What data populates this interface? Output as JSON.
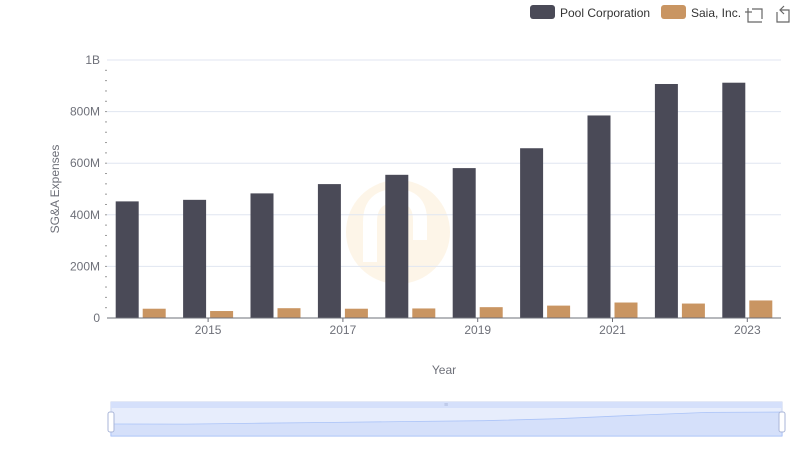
{
  "chart_data": {
    "type": "bar",
    "title": "",
    "xlabel": "Year",
    "ylabel": "SG&A Expenses",
    "x": [
      2014,
      2015,
      2016,
      2017,
      2018,
      2019,
      2020,
      2021,
      2022,
      2023
    ],
    "x_tick_labels": [
      "2015",
      "2017",
      "2019",
      "2021",
      "2023"
    ],
    "x_tick_values": [
      2015,
      2017,
      2019,
      2021,
      2023
    ],
    "ylim": [
      0,
      1000000000
    ],
    "y_tick_values": [
      0,
      200000000,
      400000000,
      600000000,
      800000000,
      1000000000
    ],
    "y_tick_labels": [
      "0",
      "200M",
      "400M",
      "600M",
      "800M",
      "1B"
    ],
    "grid": true,
    "legend_position": "top-right",
    "series": [
      {
        "name": "Pool Corporation",
        "color": "#4a4a57",
        "values": [
          452000000,
          458000000,
          483000000,
          519000000,
          555000000,
          581000000,
          658000000,
          785000000,
          907000000,
          912000000
        ]
      },
      {
        "name": "Saia, Inc.",
        "color": "#c99562",
        "values": [
          36000000,
          27000000,
          38000000,
          36000000,
          37000000,
          42000000,
          48000000,
          60000000,
          56000000,
          68000000
        ]
      }
    ]
  },
  "toolbox": {
    "zoom_icon": "crop-zoom-icon",
    "restore_icon": "restore-icon"
  },
  "slider": {
    "handle_grip": "≡"
  },
  "colors": {
    "grid": "#e0e6f1",
    "axis_text": "#6e7079",
    "slider_fill": "#d5e0fb",
    "slider_border": "#c9d3ec"
  }
}
